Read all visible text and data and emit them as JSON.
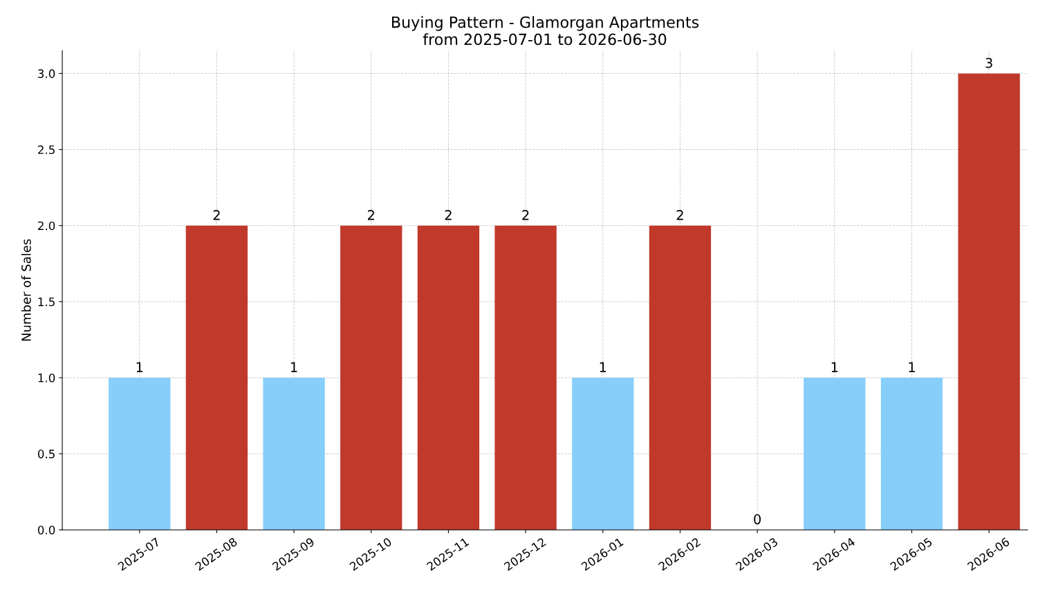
{
  "chart_data": {
    "type": "bar",
    "title": "Buying Pattern - Glamorgan Apartments\nfrom 2025-07-01 to 2026-06-30",
    "ylabel": "Number of Sales",
    "categories": [
      "2025-07",
      "2025-08",
      "2025-09",
      "2025-10",
      "2025-11",
      "2025-12",
      "2026-01",
      "2026-02",
      "2026-03",
      "2026-04",
      "2026-05",
      "2026-06"
    ],
    "values": [
      1,
      2,
      1,
      2,
      2,
      2,
      1,
      2,
      0,
      1,
      1,
      3
    ],
    "colors": [
      "#87cefa",
      "#c0392b",
      "#87cefa",
      "#c0392b",
      "#c0392b",
      "#c0392b",
      "#87cefa",
      "#c0392b",
      "#87cefa",
      "#87cefa",
      "#87cefa",
      "#c0392b"
    ],
    "ylim": [
      0,
      3.15
    ],
    "yticks": [
      {
        "value": 0,
        "label": "0.0"
      },
      {
        "value": 0.5,
        "label": "0.5"
      },
      {
        "value": 1,
        "label": "1.0"
      },
      {
        "value": 1.5,
        "label": "1.5"
      },
      {
        "value": 2,
        "label": "2.0"
      },
      {
        "value": 2.5,
        "label": "2.5"
      },
      {
        "value": 3,
        "label": "3.0"
      }
    ],
    "grid": true,
    "data_labels": true
  }
}
